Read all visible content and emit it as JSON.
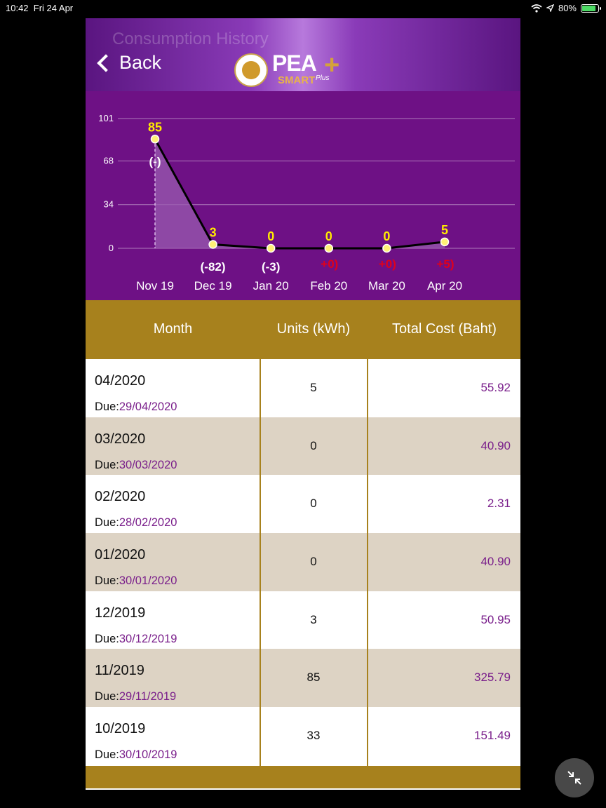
{
  "status": {
    "time": "10:42",
    "date": "Fri 24 Apr",
    "battery": "80%"
  },
  "header": {
    "ghost_title": "Consumption History",
    "back_label": "Back",
    "logo_main": "PEA",
    "logo_plus": "+",
    "logo_smart": "SMART",
    "logo_plus_word": "Plus"
  },
  "chart_data": {
    "type": "line",
    "categories": [
      "Nov 19",
      "Dec 19",
      "Jan 20",
      "Feb 20",
      "Mar 20",
      "Apr 20"
    ],
    "values": [
      85,
      3,
      0,
      0,
      0,
      5
    ],
    "value_labels": [
      "85",
      "3",
      "0",
      "0",
      "0",
      "5"
    ],
    "change_labels": [
      "(-)",
      "(-82)",
      "(-3)",
      "+0)",
      "+0)",
      "+5)"
    ],
    "y_ticks": [
      "101",
      "68",
      "34",
      "0"
    ],
    "ylim": [
      0,
      101
    ],
    "grid": true,
    "colors": {
      "background": "#6e1185",
      "line": "#000000",
      "area": "#9a5bb0",
      "point": "#fff176",
      "value_label": "#ffea00",
      "change_negative": "#ffffff",
      "change_positive": "#e0001b"
    }
  },
  "table": {
    "headers": [
      "Month",
      "Units (kWh)",
      "Total Cost (Baht)"
    ],
    "due_label": "Due:",
    "rows": [
      {
        "month": "04/2020",
        "due": "29/04/2020",
        "units": "5",
        "cost": "55.92"
      },
      {
        "month": "03/2020",
        "due": "30/03/2020",
        "units": "0",
        "cost": "40.90"
      },
      {
        "month": "02/2020",
        "due": "28/02/2020",
        "units": "0",
        "cost": "2.31"
      },
      {
        "month": "01/2020",
        "due": "30/01/2020",
        "units": "0",
        "cost": "40.90"
      },
      {
        "month": "12/2019",
        "due": "30/12/2019",
        "units": "3",
        "cost": "50.95"
      },
      {
        "month": "11/2019",
        "due": "29/11/2019",
        "units": "85",
        "cost": "325.79"
      },
      {
        "month": "10/2019",
        "due": "30/10/2019",
        "units": "33",
        "cost": "151.49"
      }
    ]
  },
  "colors": {
    "header_gold": "#a7811d",
    "row_alt": "#ddd3c4",
    "accent_purple": "#7a1f8b"
  }
}
